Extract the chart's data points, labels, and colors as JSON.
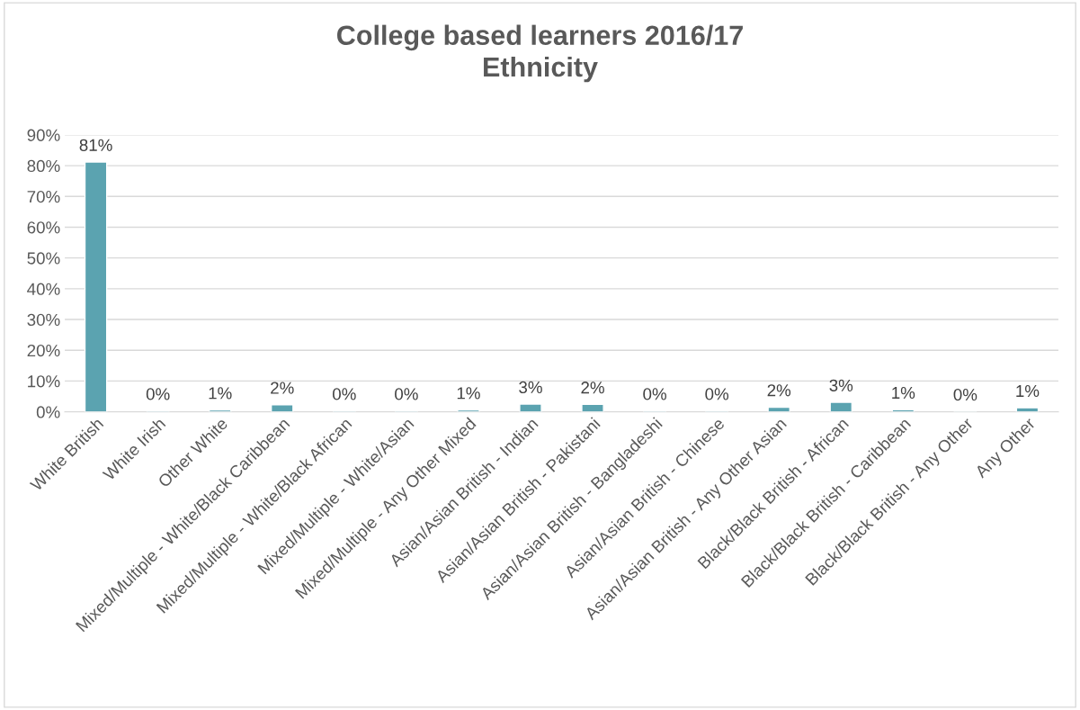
{
  "chart_data": {
    "type": "bar",
    "title": "College based learners 2016/17\nEthnicity",
    "categories": [
      "White British",
      "White Irish",
      "Other White",
      "Mixed/Multiple - White/Black Caribbean",
      "Mixed/Multiple - White/Black African",
      "Mixed/Multiple - White/Asian",
      "Mixed/Multiple - Any Other Mixed",
      "Asian/Asian British - Indian",
      "Asian/Asian British - Pakistani",
      "Asian/Asian British - Bangladeshi",
      "Asian/Asian British - Chinese",
      "Asian/Asian British - Any Other Asian",
      "Black/Black British - African",
      "Black/Black British - Caribbean",
      "Black/Black British - Any Other",
      "Any Other"
    ],
    "values": [
      81.2,
      0.3,
      0.6,
      2.3,
      0.3,
      0.3,
      0.6,
      2.5,
      2.4,
      0.3,
      0.3,
      1.5,
      3.1,
      0.7,
      0.1,
      1.3
    ],
    "value_labels": [
      "81%",
      "0%",
      "1%",
      "2%",
      "0%",
      "0%",
      "1%",
      "3%",
      "2%",
      "0%",
      "0%",
      "2%",
      "3%",
      "1%",
      "0%",
      "1%"
    ],
    "color": "#5ba3b0",
    "ylim": [
      0,
      90
    ],
    "yticks": [
      {
        "value": 0,
        "label": "0%"
      },
      {
        "value": 10,
        "label": "10%"
      },
      {
        "value": 20,
        "label": "20%"
      },
      {
        "value": 30,
        "label": "30%"
      },
      {
        "value": 40,
        "label": "40%"
      },
      {
        "value": 50,
        "label": "50%"
      },
      {
        "value": 60,
        "label": "60%"
      },
      {
        "value": 70,
        "label": "70%"
      },
      {
        "value": 80,
        "label": "80%"
      },
      {
        "value": 90,
        "label": "90%"
      }
    ],
    "grid": "y",
    "legend": false
  }
}
